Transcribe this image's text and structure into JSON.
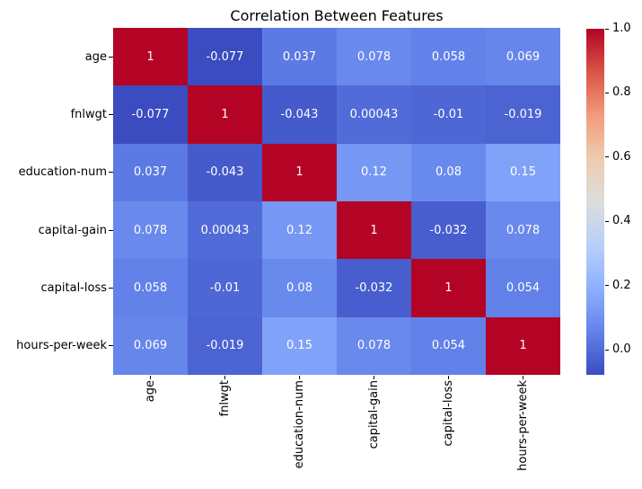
{
  "chart_data": {
    "type": "heatmap",
    "title": "Correlation Between Features",
    "categories": [
      "age",
      "fnlwgt",
      "education-num",
      "capital-gain",
      "capital-loss",
      "hours-per-week"
    ],
    "matrix": [
      [
        1,
        -0.077,
        0.037,
        0.078,
        0.058,
        0.069
      ],
      [
        -0.077,
        1,
        -0.043,
        0.00043,
        -0.01,
        -0.019
      ],
      [
        0.037,
        -0.043,
        1,
        0.12,
        0.08,
        0.15
      ],
      [
        0.078,
        0.00043,
        0.12,
        1,
        -0.032,
        0.078
      ],
      [
        0.058,
        -0.01,
        0.08,
        -0.032,
        1,
        0.054
      ],
      [
        0.069,
        -0.019,
        0.15,
        0.078,
        0.054,
        1
      ]
    ],
    "annotations": [
      [
        "1",
        "-0.077",
        "0.037",
        "0.078",
        "0.058",
        "0.069"
      ],
      [
        "-0.077",
        "1",
        "-0.043",
        "0.00043",
        "-0.01",
        "-0.019"
      ],
      [
        "0.037",
        "-0.043",
        "1",
        "0.12",
        "0.08",
        "0.15"
      ],
      [
        "0.078",
        "0.00043",
        "0.12",
        "1",
        "-0.032",
        "0.078"
      ],
      [
        "0.058",
        "-0.01",
        "0.08",
        "-0.032",
        "1",
        "0.054"
      ],
      [
        "0.069",
        "-0.019",
        "0.15",
        "0.078",
        "0.054",
        "1"
      ]
    ],
    "colormap": "coolwarm",
    "vmin": -0.077,
    "vmax": 1.0,
    "annotation_color": "#ffffff",
    "colorbar_ticks": [
      {
        "label": "1.0",
        "value": 1.0
      },
      {
        "label": "0.8",
        "value": 0.8
      },
      {
        "label": "0.6",
        "value": 0.6
      },
      {
        "label": "0.4",
        "value": 0.4
      },
      {
        "label": "0.2",
        "value": 0.2
      },
      {
        "label": "0.0",
        "value": 0.0
      }
    ],
    "colors": {
      "min": "#3b4cc0",
      "mid": "#dddddc",
      "max": "#b40426",
      "background": "#ffffff",
      "text": "#000000"
    },
    "legend_position": "right-colorbar",
    "grid": false
  }
}
